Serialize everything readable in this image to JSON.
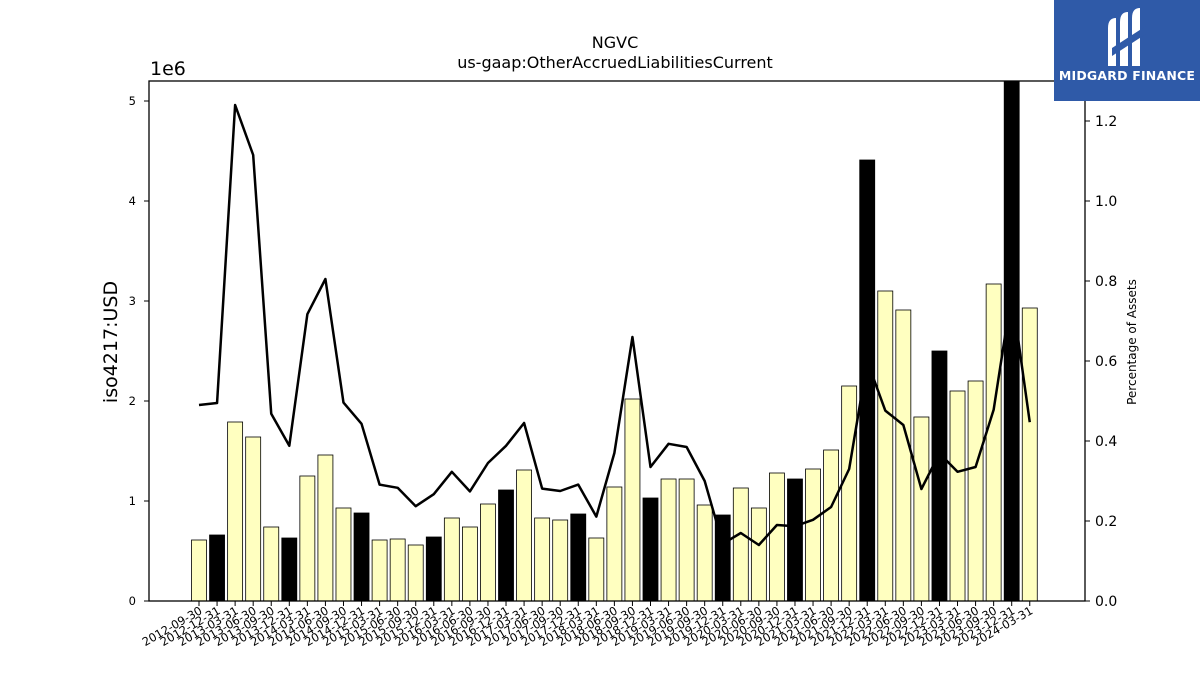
{
  "chart_data": {
    "type": "bar",
    "title": "NGVC",
    "subtitle": "us-gaap:OtherAccruedLiabilitiesCurrent",
    "ylabel": "iso4217:USD",
    "y2label": "Percentage of Assets",
    "y_offset_label": "1e6",
    "ylim": [
      0,
      5.2
    ],
    "y2lim": [
      0,
      1.3
    ],
    "y_ticks": [
      "0",
      "1",
      "2",
      "3",
      "4",
      "5"
    ],
    "y2_ticks": [
      "0.0",
      "0.2",
      "0.4",
      "0.6",
      "0.8",
      "1.0",
      "1.2"
    ],
    "categories": [
      "2012-09-30",
      "2012-12-31",
      "2013-03-31",
      "2013-06-30",
      "2013-09-30",
      "2013-12-31",
      "2014-03-31",
      "2014-06-30",
      "2014-09-30",
      "2014-12-31",
      "2015-03-31",
      "2015-06-30",
      "2015-09-30",
      "2015-12-31",
      "2016-03-31",
      "2016-06-30",
      "2016-09-30",
      "2016-12-31",
      "2017-03-31",
      "2017-06-30",
      "2017-09-30",
      "2017-12-31",
      "2018-03-31",
      "2018-06-30",
      "2018-09-30",
      "2018-12-31",
      "2019-03-31",
      "2019-06-30",
      "2019-09-30",
      "2019-12-31",
      "2020-03-31",
      "2020-06-30",
      "2020-09-30",
      "2020-12-31",
      "2021-03-31",
      "2021-06-30",
      "2021-09-30",
      "2021-12-31",
      "2022-03-31",
      "2022-06-30",
      "2022-09-30",
      "2022-12-31",
      "2023-03-31",
      "2023-06-30",
      "2023-09-30",
      "2023-12-31",
      "2024-03-31"
    ],
    "series": [
      {
        "kind": "bar",
        "values": [
          0.61,
          0.66,
          1.79,
          1.64,
          0.74,
          0.63,
          1.25,
          1.46,
          0.93,
          0.88,
          0.61,
          0.62,
          0.56,
          0.64,
          0.83,
          0.74,
          0.97,
          1.11,
          1.31,
          0.83,
          0.81,
          0.87,
          0.63,
          1.14,
          2.02,
          1.03,
          1.22,
          1.22,
          0.96,
          0.86,
          1.13,
          0.93,
          1.28,
          1.22,
          1.32,
          1.51,
          2.15,
          4.41,
          3.1,
          2.91,
          1.84,
          2.5,
          2.1,
          2.2,
          3.17,
          5.2,
          2.93
        ],
        "highlight": [
          false,
          true,
          false,
          false,
          false,
          true,
          false,
          false,
          false,
          true,
          false,
          false,
          false,
          true,
          false,
          false,
          false,
          true,
          false,
          false,
          false,
          true,
          false,
          false,
          false,
          true,
          false,
          false,
          false,
          true,
          false,
          false,
          false,
          true,
          false,
          false,
          false,
          true,
          false,
          false,
          false,
          true,
          false,
          false,
          false,
          true,
          false
        ],
        "fill": "#ffffc0",
        "highlight_fill": "#000000"
      },
      {
        "kind": "line",
        "axis": "right",
        "values": [
          0.49,
          0.495,
          1.24,
          1.115,
          0.468,
          0.388,
          0.717,
          0.805,
          0.496,
          0.443,
          0.291,
          0.283,
          0.237,
          0.267,
          0.323,
          0.274,
          0.345,
          0.388,
          0.445,
          0.281,
          0.275,
          0.291,
          0.211,
          0.37,
          0.66,
          0.335,
          0.393,
          0.385,
          0.3,
          0.143,
          0.17,
          0.14,
          0.19,
          0.187,
          0.203,
          0.235,
          0.33,
          0.6,
          0.476,
          0.44,
          0.28,
          0.369,
          0.323,
          0.335,
          0.478,
          0.77,
          0.447
        ],
        "color": "#000000"
      }
    ]
  },
  "logo": {
    "text": "MIDGARD FINANCE",
    "icon": "midgard-m-icon"
  }
}
